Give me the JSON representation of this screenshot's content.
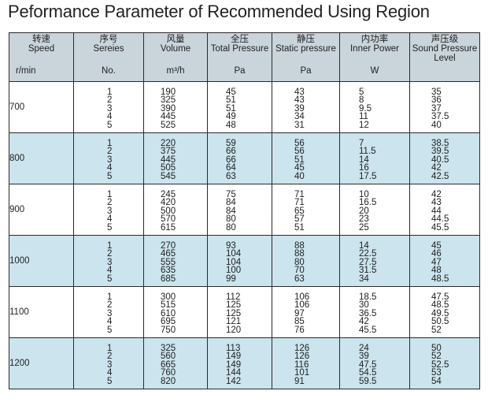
{
  "title": "Peformance Parameter of Recommended Using Region",
  "table": {
    "headers": [
      {
        "cn": "转速",
        "en": "Speed",
        "unit": "r/min"
      },
      {
        "cn": "序号",
        "en": "Sereies",
        "unit": "No."
      },
      {
        "cn": "风量",
        "en": "Volume",
        "unit": "m³/h"
      },
      {
        "cn": "全压",
        "en": "Total Pressure",
        "unit": "Pa"
      },
      {
        "cn": "静压",
        "en": "Static pressure",
        "unit": "Pa"
      },
      {
        "cn": "内功率",
        "en": "Inner Power",
        "unit": "W"
      },
      {
        "cn": "声压级",
        "en": "Sound Pressure",
        "en2": "Level",
        "unit": ""
      }
    ],
    "rows": [
      {
        "speed": "700",
        "series": [
          "1",
          "2",
          "3",
          "4",
          "5"
        ],
        "volume": [
          "190",
          "325",
          "390",
          "445",
          "525"
        ],
        "total": [
          "45",
          "51",
          "51",
          "49",
          "48"
        ],
        "static": [
          "43",
          "43",
          "39",
          "34",
          "31"
        ],
        "power": [
          "5",
          "8",
          "9.5",
          "11",
          "12"
        ],
        "sound": [
          "35",
          "36",
          "37",
          "37.5",
          "40"
        ]
      },
      {
        "speed": "800",
        "series": [
          "1",
          "2",
          "3",
          "4",
          "5"
        ],
        "volume": [
          "220",
          "375",
          "445",
          "505",
          "545"
        ],
        "total": [
          "59",
          "66",
          "66",
          "64",
          "63"
        ],
        "static": [
          "56",
          "56",
          "51",
          "45",
          "40"
        ],
        "power": [
          "7",
          "11.5",
          "14",
          "16",
          "17.5"
        ],
        "sound": [
          "38.5",
          "39.5",
          "40.5",
          "42",
          "42.5"
        ]
      },
      {
        "speed": "900",
        "series": [
          "1",
          "2",
          "3",
          "4",
          "5"
        ],
        "volume": [
          "245",
          "420",
          "500",
          "570",
          "615"
        ],
        "total": [
          "75",
          "84",
          "84",
          "80",
          "80"
        ],
        "static": [
          "71",
          "71",
          "65",
          "57",
          "51"
        ],
        "power": [
          "10",
          "16.5",
          "20",
          "23",
          "25"
        ],
        "sound": [
          "42",
          "43",
          "44",
          "44.5",
          "45.5"
        ]
      },
      {
        "speed": "1000",
        "series": [
          "1",
          "2",
          "3",
          "4",
          "5"
        ],
        "volume": [
          "270",
          "465",
          "555",
          "635",
          "685"
        ],
        "total": [
          "93",
          "104",
          "104",
          "100",
          "99"
        ],
        "static": [
          "88",
          "88",
          "80",
          "70",
          "63"
        ],
        "power": [
          "14",
          "22.5",
          "27.5",
          "31.5",
          "34"
        ],
        "sound": [
          "45",
          "46",
          "47",
          "48",
          "48.5"
        ]
      },
      {
        "speed": "1100",
        "series": [
          "1",
          "2",
          "3",
          "4",
          "5"
        ],
        "volume": [
          "300",
          "515",
          "610",
          "695",
          "750"
        ],
        "total": [
          "112",
          "125",
          "125",
          "121",
          "120"
        ],
        "static": [
          "106",
          "106",
          "97",
          "85",
          "76"
        ],
        "power": [
          "18.5",
          "30",
          "36.5",
          "42",
          "45.5"
        ],
        "sound": [
          "47.5",
          "48.5",
          "49.5",
          "50.5",
          "52"
        ]
      },
      {
        "speed": "1200",
        "series": [
          "1",
          "2",
          "3",
          "4",
          "5"
        ],
        "volume": [
          "325",
          "560",
          "665",
          "760",
          "820"
        ],
        "total": [
          "113",
          "149",
          "149",
          "144",
          "142"
        ],
        "static": [
          "126",
          "126",
          "116",
          "101",
          "91"
        ],
        "power": [
          "24",
          "39",
          "47.5",
          "54.5",
          "59.5"
        ],
        "sound": [
          "50",
          "52",
          "52.5",
          "53",
          "54"
        ]
      }
    ]
  }
}
